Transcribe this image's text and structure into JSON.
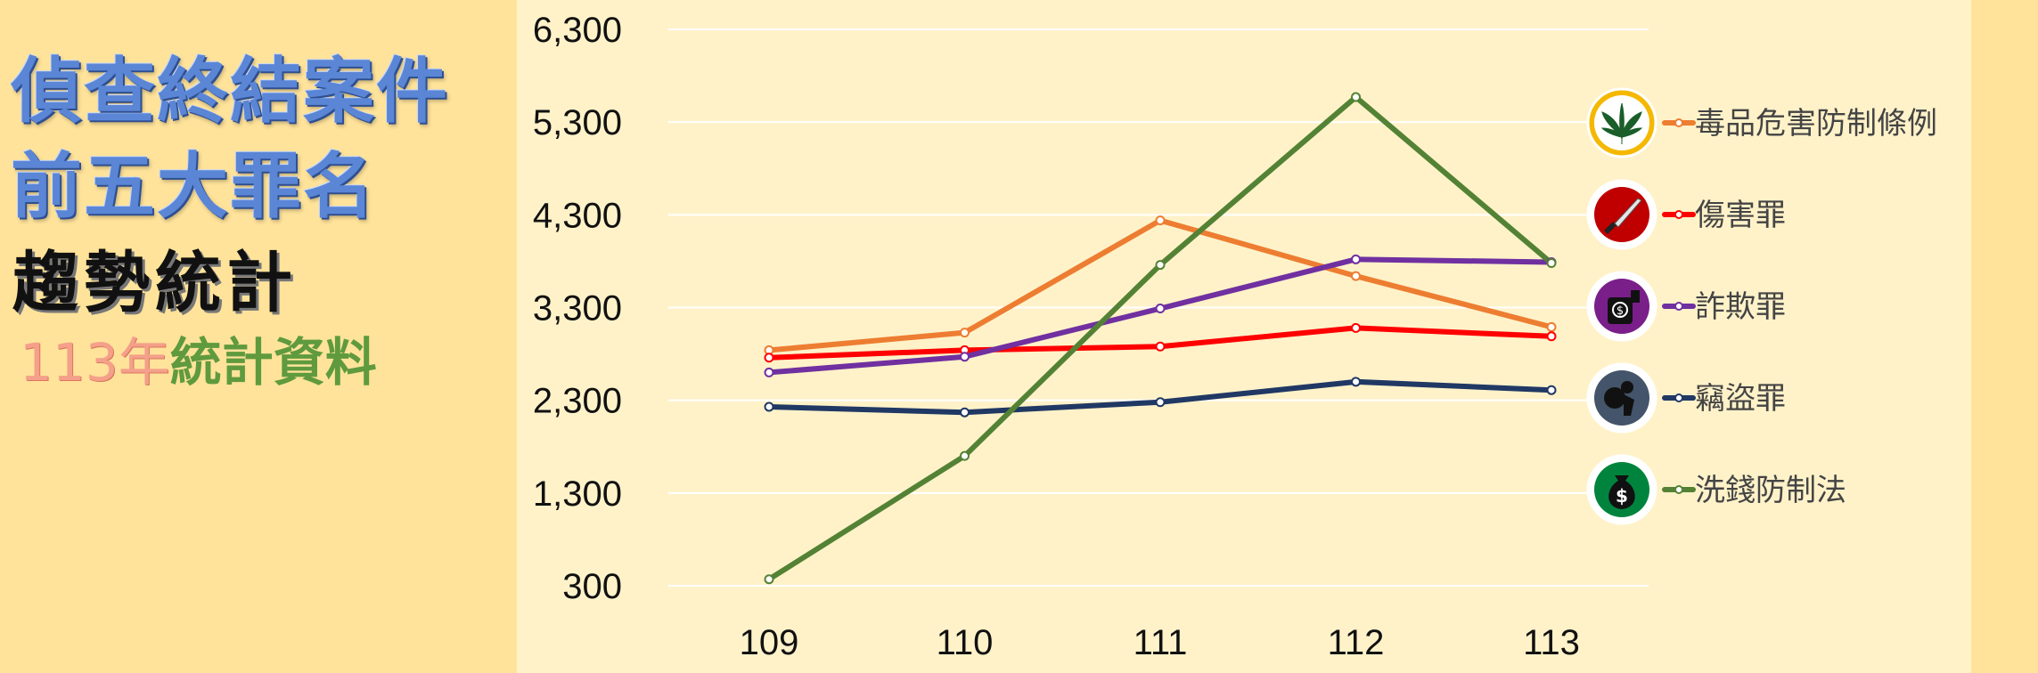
{
  "heading": {
    "line1": "偵查終結案件",
    "line2": "前五大罪名",
    "line3": "趨勢統計",
    "subtitle_year": "113年",
    "subtitle_rest": "統計資料"
  },
  "chart_data": {
    "type": "line",
    "x": [
      "109",
      "110",
      "111",
      "112",
      "113"
    ],
    "yticks": [
      "300",
      "1,300",
      "2,300",
      "3,300",
      "4,300",
      "5,300",
      "6,300"
    ],
    "ylim": [
      300,
      6300
    ],
    "grid": true,
    "legend_position": "right",
    "series": [
      {
        "name": "毒品危害防制條例",
        "color": "#ed7d31",
        "icon": "cannabis-leaf-icon",
        "icon_bg": "#ffffff",
        "icon_ring": "#f5b800",
        "values": [
          2840,
          3030,
          4240,
          3640,
          3090
        ]
      },
      {
        "name": "傷害罪",
        "color": "#ff0000",
        "icon": "knife-icon",
        "icon_bg": "#c00000",
        "icon_ring": "#ffffff",
        "values": [
          2760,
          2840,
          2880,
          3080,
          2990
        ]
      },
      {
        "name": "詐欺罪",
        "color": "#7030a0",
        "icon": "money-bag-fraud-icon",
        "icon_bg": "#7a1f8a",
        "icon_ring": "#ffffff",
        "values": [
          2600,
          2770,
          3290,
          3820,
          3790
        ]
      },
      {
        "name": "竊盜罪",
        "color": "#203864",
        "icon": "thief-icon",
        "icon_bg": "#44546a",
        "icon_ring": "#ffffff",
        "values": [
          2230,
          2170,
          2280,
          2500,
          2410
        ]
      },
      {
        "name": "洗錢防制法",
        "color": "#548235",
        "icon": "dollar-bag-icon",
        "icon_bg": "#00843d",
        "icon_ring": "#ffffff",
        "values": [
          370,
          1700,
          3760,
          5570,
          3780
        ]
      }
    ]
  }
}
